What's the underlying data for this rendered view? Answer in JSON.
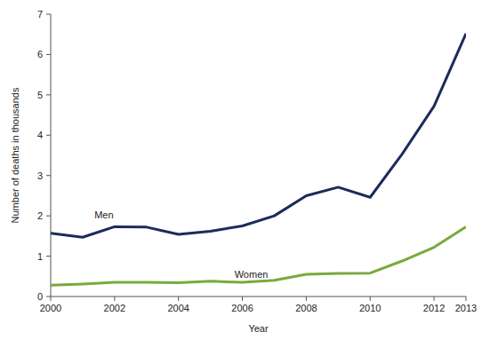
{
  "chart_data": {
    "type": "line",
    "x_label": "Year",
    "y_label": "Number of deaths in thousands",
    "x": [
      2000,
      2001,
      2002,
      2003,
      2004,
      2005,
      2006,
      2007,
      2008,
      2009,
      2010,
      2011,
      2012,
      2013
    ],
    "series": [
      {
        "name": "Men",
        "color": "#1b2b5b",
        "values": [
          1.57,
          1.47,
          1.73,
          1.72,
          1.54,
          1.62,
          1.75,
          2.0,
          2.5,
          2.71,
          2.46,
          3.53,
          4.72,
          6.52
        ]
      },
      {
        "name": "Women",
        "color": "#78aa3c",
        "values": [
          0.28,
          0.31,
          0.35,
          0.35,
          0.34,
          0.38,
          0.35,
          0.4,
          0.55,
          0.57,
          0.58,
          0.88,
          1.22,
          1.73
        ]
      }
    ],
    "xlim": [
      2000,
      2013
    ],
    "xticks": [
      2000,
      2002,
      2004,
      2006,
      2008,
      2010,
      2012,
      2013
    ],
    "ylim": [
      0,
      7
    ],
    "yticks": [
      0,
      1,
      2,
      3,
      4,
      5,
      6,
      7
    ],
    "grid": false
  }
}
